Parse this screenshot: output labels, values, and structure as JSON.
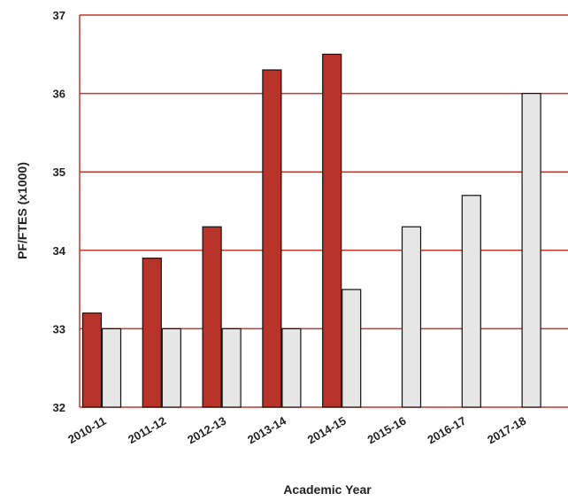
{
  "chart_data": {
    "type": "bar",
    "xlabel": "Academic Year",
    "ylabel": "PF/FTES (x1000)",
    "categories": [
      "2010-11",
      "2011-12",
      "2012-13",
      "2013-14",
      "2014-15",
      "2015-16",
      "2016-17",
      "2017-18"
    ],
    "series": [
      {
        "values": [
          33.2,
          33.9,
          34.3,
          36.3,
          36.5,
          null,
          null,
          null
        ],
        "color": "#b8342b"
      },
      {
        "values": [
          33.0,
          33.0,
          33.0,
          33.0,
          33.5,
          34.3,
          34.7,
          36.0
        ],
        "color": "#e6e6e6"
      }
    ],
    "y_ticks": [
      32,
      33,
      34,
      35,
      36,
      37
    ],
    "ylim": [
      32,
      37
    ],
    "grid": true,
    "colors": {
      "gridline": "#c0392b",
      "axis": "#c0392b"
    }
  }
}
